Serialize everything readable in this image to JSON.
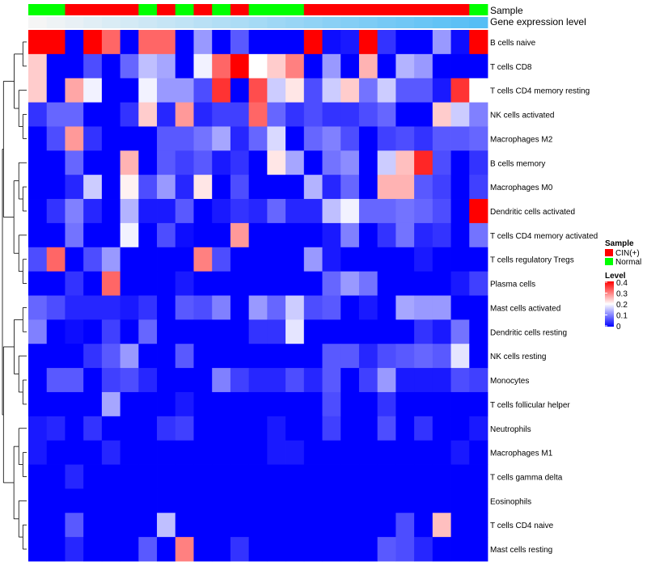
{
  "chart_data": {
    "type": "heatmap",
    "title": "",
    "annotation_labels": {
      "sample": "Sample",
      "gene_expression": "Gene expression level"
    },
    "legend_sample": {
      "title": "Sample",
      "items": [
        {
          "label": "CIN(+)",
          "color": "#ff0000"
        },
        {
          "label": "Normal",
          "color": "#00ff00"
        }
      ]
    },
    "legend_level": {
      "title": "Level",
      "ticks": [
        "0.4",
        "0.3",
        "0.2",
        "0.1",
        "0"
      ],
      "range": [
        0,
        0.4
      ]
    },
    "color_scale": {
      "low": "#0000ff",
      "mid": "#ffffff",
      "high": "#ff0000",
      "domain": [
        0,
        0.2,
        0.4
      ]
    },
    "sample_groups": [
      "N",
      "N",
      "C",
      "C",
      "C",
      "C",
      "N",
      "C",
      "N",
      "C",
      "N",
      "C",
      "N",
      "N",
      "N",
      "C",
      "C",
      "C",
      "C",
      "C",
      "C",
      "C",
      "C",
      "C",
      "N"
    ],
    "rows": [
      "B cells naive",
      "T cells CD8",
      "T cells CD4 memory resting",
      "NK cells activated",
      "Macrophages M2",
      "B cells memory",
      "Macrophages M0",
      "Dendritic cells activated",
      "T cells CD4 memory activated",
      "T cells regulatory  Tregs",
      "Plasma cells",
      "Mast cells activated",
      "Dendritic cells resting",
      "NK cells resting",
      "Monocytes",
      "T cells follicular helper",
      "Neutrophils",
      "Macrophages M1",
      "T cells gamma delta",
      "Eosinophils",
      "T cells CD4 naive",
      "Mast cells resting"
    ],
    "values": [
      [
        0.4,
        0.4,
        0.0,
        0.4,
        0.32,
        0.0,
        0.32,
        0.32,
        0.0,
        0.12,
        0.0,
        0.07,
        0.0,
        0.0,
        0.0,
        0.4,
        0.01,
        0.02,
        0.4,
        0.04,
        0.0,
        0.0,
        0.12,
        0.01,
        0.4
      ],
      [
        0.24,
        0.0,
        0.0,
        0.06,
        0.0,
        0.08,
        0.15,
        0.13,
        0.0,
        0.19,
        0.32,
        0.4,
        0.2,
        0.24,
        0.3,
        0.0,
        0.12,
        0.0,
        0.26,
        0.0,
        0.14,
        0.12,
        0.0,
        0.0,
        0.0
      ],
      [
        0.24,
        0.0,
        0.27,
        0.19,
        0.0,
        0.0,
        0.19,
        0.12,
        0.12,
        0.06,
        0.36,
        0.0,
        0.34,
        0.16,
        0.22,
        0.06,
        0.16,
        0.24,
        0.09,
        0.16,
        0.07,
        0.07,
        0.02,
        0.36,
        0.2
      ],
      [
        0.04,
        0.08,
        0.08,
        0.0,
        0.0,
        0.04,
        0.24,
        0.03,
        0.28,
        0.03,
        0.05,
        0.05,
        0.32,
        0.08,
        0.04,
        0.06,
        0.04,
        0.04,
        0.06,
        0.08,
        0.0,
        0.0,
        0.24,
        0.16,
        0.1
      ],
      [
        0.0,
        0.06,
        0.28,
        0.04,
        0.0,
        0.0,
        0.0,
        0.07,
        0.07,
        0.09,
        0.13,
        0.03,
        0.08,
        0.17,
        0.0,
        0.08,
        0.1,
        0.06,
        0.0,
        0.05,
        0.06,
        0.04,
        0.07,
        0.07,
        0.08
      ],
      [
        0.0,
        0.0,
        0.08,
        0.0,
        0.0,
        0.26,
        0.0,
        0.07,
        0.05,
        0.07,
        0.02,
        0.04,
        0.0,
        0.22,
        0.13,
        0.0,
        0.09,
        0.11,
        0.0,
        0.16,
        0.25,
        0.37,
        0.06,
        0.0,
        0.04
      ],
      [
        0.0,
        0.0,
        0.03,
        0.16,
        0.0,
        0.21,
        0.06,
        0.12,
        0.03,
        0.22,
        0.0,
        0.06,
        0.0,
        0.0,
        0.0,
        0.14,
        0.03,
        0.08,
        0.0,
        0.26,
        0.26,
        0.07,
        0.05,
        0.0,
        0.05
      ],
      [
        0.0,
        0.04,
        0.1,
        0.03,
        0.0,
        0.14,
        0.02,
        0.02,
        0.07,
        0.0,
        0.02,
        0.04,
        0.03,
        0.08,
        0.03,
        0.03,
        0.15,
        0.19,
        0.08,
        0.08,
        0.09,
        0.08,
        0.06,
        0.0,
        0.4
      ],
      [
        0.0,
        0.0,
        0.09,
        0.0,
        0.0,
        0.19,
        0.0,
        0.06,
        0.01,
        0.0,
        0.0,
        0.28,
        0.0,
        0.0,
        0.0,
        0.0,
        0.02,
        0.1,
        0.0,
        0.04,
        0.09,
        0.03,
        0.04,
        0.0,
        0.09
      ],
      [
        0.06,
        0.32,
        0.0,
        0.06,
        0.12,
        0.0,
        0.0,
        0.0,
        0.0,
        0.3,
        0.06,
        0.0,
        0.0,
        0.0,
        0.0,
        0.12,
        0.02,
        0.0,
        0.0,
        0.0,
        0.0,
        0.02,
        0.0,
        0.0,
        0.0
      ],
      [
        0.0,
        0.0,
        0.04,
        0.0,
        0.32,
        0.0,
        0.0,
        0.0,
        0.02,
        0.0,
        0.0,
        0.0,
        0.0,
        0.0,
        0.0,
        0.0,
        0.08,
        0.12,
        0.09,
        0.0,
        0.0,
        0.0,
        0.0,
        0.02,
        0.05
      ],
      [
        0.08,
        0.06,
        0.03,
        0.03,
        0.03,
        0.02,
        0.04,
        0.0,
        0.07,
        0.06,
        0.1,
        0.0,
        0.12,
        0.08,
        0.16,
        0.06,
        0.07,
        0.0,
        0.02,
        0.0,
        0.13,
        0.12,
        0.12,
        0.0,
        0.0
      ],
      [
        0.1,
        0.0,
        0.01,
        0.0,
        0.05,
        0.0,
        0.08,
        0.0,
        0.0,
        0.0,
        0.0,
        0.0,
        0.04,
        0.04,
        0.18,
        0.0,
        0.0,
        0.0,
        0.0,
        0.0,
        0.0,
        0.04,
        0.02,
        0.09,
        0.0
      ],
      [
        0.0,
        0.0,
        0.0,
        0.04,
        0.07,
        0.12,
        0.0,
        0.0,
        0.07,
        0.0,
        0.0,
        0.0,
        0.0,
        0.0,
        0.0,
        0.0,
        0.07,
        0.07,
        0.03,
        0.06,
        0.07,
        0.08,
        0.07,
        0.18,
        0.0
      ],
      [
        0.0,
        0.07,
        0.07,
        0.0,
        0.05,
        0.06,
        0.03,
        0.0,
        0.0,
        0.0,
        0.1,
        0.05,
        0.03,
        0.03,
        0.06,
        0.03,
        0.07,
        0.0,
        0.05,
        0.12,
        0.02,
        0.02,
        0.02,
        0.06,
        0.05
      ],
      [
        0.0,
        0.0,
        0.0,
        0.0,
        0.13,
        0.0,
        0.0,
        0.0,
        0.02,
        0.0,
        0.0,
        0.0,
        0.0,
        0.0,
        0.0,
        0.0,
        0.06,
        0.0,
        0.0,
        0.04,
        0.0,
        0.0,
        0.0,
        0.0,
        0.0
      ],
      [
        0.02,
        0.03,
        0.0,
        0.04,
        0.0,
        0.0,
        0.0,
        0.04,
        0.05,
        0.0,
        0.0,
        0.0,
        0.0,
        0.02,
        0.0,
        0.0,
        0.05,
        0.0,
        0.0,
        0.06,
        0.0,
        0.04,
        0.0,
        0.0,
        0.02
      ],
      [
        0.02,
        0.0,
        0.0,
        0.0,
        0.03,
        0.0,
        0.0,
        0.0,
        0.0,
        0.0,
        0.0,
        0.0,
        0.0,
        0.02,
        0.02,
        0.0,
        0.0,
        0.0,
        0.0,
        0.0,
        0.0,
        0.0,
        0.0,
        0.02,
        0.0
      ],
      [
        0.0,
        0.0,
        0.03,
        0.0,
        0.0,
        0.0,
        0.0,
        0.0,
        0.0,
        0.0,
        0.0,
        0.0,
        0.0,
        0.0,
        0.0,
        0.0,
        0.0,
        0.0,
        0.0,
        0.0,
        0.0,
        0.0,
        0.0,
        0.0,
        0.0
      ],
      [
        0.0,
        0.0,
        0.0,
        0.0,
        0.0,
        0.0,
        0.0,
        0.0,
        0.0,
        0.0,
        0.0,
        0.0,
        0.0,
        0.0,
        0.0,
        0.0,
        0.0,
        0.0,
        0.0,
        0.0,
        0.0,
        0.0,
        0.0,
        0.0,
        0.0
      ],
      [
        0.0,
        0.0,
        0.07,
        0.0,
        0.0,
        0.0,
        0.0,
        0.15,
        0.0,
        0.0,
        0.0,
        0.0,
        0.0,
        0.0,
        0.0,
        0.0,
        0.0,
        0.0,
        0.0,
        0.0,
        0.06,
        0.0,
        0.25,
        0.0,
        0.0
      ],
      [
        0.0,
        0.0,
        0.03,
        0.0,
        0.0,
        0.0,
        0.07,
        0.0,
        0.3,
        0.0,
        0.0,
        0.04,
        0.0,
        0.0,
        0.0,
        0.0,
        0.0,
        0.0,
        0.0,
        0.07,
        0.06,
        0.03,
        0.0,
        0.0,
        0.0
      ]
    ]
  }
}
